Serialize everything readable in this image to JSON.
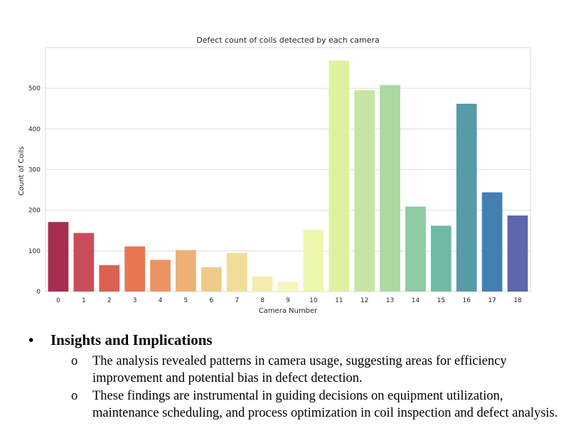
{
  "chart_data": {
    "type": "bar",
    "title": "Defect count of coils detected by each camera",
    "xlabel": "Camera Number",
    "ylabel": "Count of Coils",
    "categories": [
      "0",
      "1",
      "2",
      "3",
      "4",
      "5",
      "6",
      "7",
      "8",
      "9",
      "10",
      "11",
      "12",
      "13",
      "14",
      "15",
      "16",
      "17",
      "18"
    ],
    "values": [
      171,
      144,
      65,
      111,
      78,
      102,
      60,
      95,
      37,
      24,
      152,
      568,
      495,
      508,
      209,
      162,
      462,
      244,
      187
    ],
    "ylim": [
      0,
      600
    ],
    "yticks": [
      0,
      100,
      200,
      300,
      400,
      500
    ],
    "grid": true,
    "colors": [
      "#a72d4e",
      "#c94d59",
      "#dc6052",
      "#e67751",
      "#eb9462",
      "#edb176",
      "#efca89",
      "#f2dd98",
      "#f5ebab",
      "#f8f5bd",
      "#eef5ad",
      "#def19f",
      "#c7e5a1",
      "#acd9a2",
      "#8ecaa4",
      "#6fb8a6",
      "#559ca8",
      "#427fb3",
      "#5c67ac"
    ]
  },
  "section": {
    "bullet": "•",
    "heading": "Insights and Implications",
    "sub_marker": "o",
    "items": [
      "The analysis revealed patterns in camera usage, suggesting areas for efficiency improvement and potential bias in defect detection.",
      "These findings are instrumental in guiding decisions on equipment utilization, maintenance scheduling, and process optimization in coil inspection and defect analysis."
    ]
  }
}
